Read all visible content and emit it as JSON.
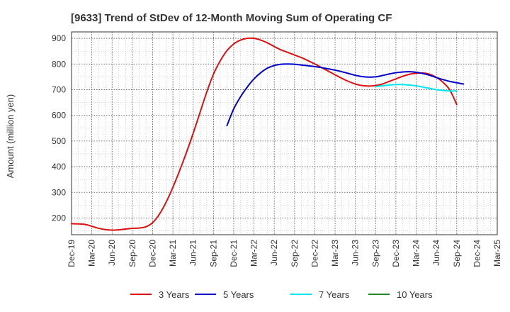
{
  "chart_data": {
    "type": "line",
    "title": "[9633]  Trend of StDev of 12-Month Moving Sum of Operating CF",
    "ylabel": "Amount (million yen)",
    "xlabel": "",
    "ylim": [
      135,
      925
    ],
    "yticks": [
      200,
      300,
      400,
      500,
      600,
      700,
      800,
      900
    ],
    "x_tick_labels": [
      "Dec-19",
      "Mar-20",
      "Jun-20",
      "Sep-20",
      "Dec-20",
      "Mar-21",
      "Jun-21",
      "Sep-21",
      "Dec-21",
      "Mar-22",
      "Jun-22",
      "Sep-22",
      "Dec-22",
      "Mar-23",
      "Jun-23",
      "Sep-23",
      "Dec-23",
      "Mar-24",
      "Jun-24",
      "Sep-24",
      "Dec-24",
      "Mar-25"
    ],
    "grid": true,
    "legend_position": "bottom",
    "series": [
      {
        "name": "3 Years",
        "color": "#dd1111",
        "points": [
          [
            "Dec-19",
            178
          ],
          [
            "Jan-20",
            177
          ],
          [
            "Feb-20",
            175
          ],
          [
            "Mar-20",
            168
          ],
          [
            "Apr-20",
            160
          ],
          [
            "May-20",
            155
          ],
          [
            "Jun-20",
            153
          ],
          [
            "Jul-20",
            154
          ],
          [
            "Aug-20",
            157
          ],
          [
            "Sep-20",
            160
          ],
          [
            "Oct-20",
            161
          ],
          [
            "Nov-20",
            166
          ],
          [
            "Dec-20",
            182
          ],
          [
            "Jan-21",
            215
          ],
          [
            "Feb-21",
            262
          ],
          [
            "Mar-21",
            320
          ],
          [
            "Apr-21",
            385
          ],
          [
            "May-21",
            455
          ],
          [
            "Jun-21",
            530
          ],
          [
            "Jul-21",
            610
          ],
          [
            "Aug-21",
            690
          ],
          [
            "Sep-21",
            760
          ],
          [
            "Oct-21",
            812
          ],
          [
            "Nov-21",
            852
          ],
          [
            "Dec-21",
            878
          ],
          [
            "Jan-22",
            893
          ],
          [
            "Feb-22",
            900
          ],
          [
            "Mar-22",
            900
          ],
          [
            "Apr-22",
            893
          ],
          [
            "May-22",
            882
          ],
          [
            "Jun-22",
            868
          ],
          [
            "Jul-22",
            855
          ],
          [
            "Aug-22",
            845
          ],
          [
            "Sep-22",
            835
          ],
          [
            "Oct-22",
            825
          ],
          [
            "Nov-22",
            813
          ],
          [
            "Dec-22",
            800
          ],
          [
            "Jan-23",
            786
          ],
          [
            "Feb-23",
            772
          ],
          [
            "Mar-23",
            758
          ],
          [
            "Apr-23",
            744
          ],
          [
            "May-23",
            732
          ],
          [
            "Jun-23",
            722
          ],
          [
            "Jul-23",
            716
          ],
          [
            "Aug-23",
            714
          ],
          [
            "Sep-23",
            716
          ],
          [
            "Oct-23",
            722
          ],
          [
            "Nov-23",
            732
          ],
          [
            "Dec-23",
            742
          ],
          [
            "Jan-24",
            752
          ],
          [
            "Feb-24",
            760
          ],
          [
            "Mar-24",
            764
          ],
          [
            "Apr-24",
            765
          ],
          [
            "May-24",
            760
          ],
          [
            "Jun-24",
            748
          ],
          [
            "Jul-24",
            728
          ],
          [
            "Aug-24",
            698
          ],
          [
            "Sep-24",
            642
          ]
        ]
      },
      {
        "name": "5 Years",
        "color": "#0000cc",
        "points": [
          [
            "Nov-21",
            560
          ],
          [
            "Dec-21",
            625
          ],
          [
            "Jan-22",
            672
          ],
          [
            "Feb-22",
            710
          ],
          [
            "Mar-22",
            742
          ],
          [
            "Apr-22",
            766
          ],
          [
            "May-22",
            784
          ],
          [
            "Jun-22",
            794
          ],
          [
            "Jul-22",
            799
          ],
          [
            "Aug-22",
            800
          ],
          [
            "Sep-22",
            799
          ],
          [
            "Oct-22",
            796
          ],
          [
            "Nov-22",
            793
          ],
          [
            "Dec-22",
            790
          ],
          [
            "Jan-23",
            786
          ],
          [
            "Feb-23",
            781
          ],
          [
            "Mar-23",
            776
          ],
          [
            "Apr-23",
            770
          ],
          [
            "May-23",
            763
          ],
          [
            "Jun-23",
            756
          ],
          [
            "Jul-23",
            751
          ],
          [
            "Aug-23",
            749
          ],
          [
            "Sep-23",
            750
          ],
          [
            "Oct-23",
            755
          ],
          [
            "Nov-23",
            761
          ],
          [
            "Dec-23",
            766
          ],
          [
            "Jan-24",
            769
          ],
          [
            "Feb-24",
            770
          ],
          [
            "Mar-24",
            768
          ],
          [
            "Apr-24",
            763
          ],
          [
            "May-24",
            756
          ],
          [
            "Jun-24",
            747
          ],
          [
            "Jul-24",
            739
          ],
          [
            "Aug-24",
            732
          ],
          [
            "Sep-24",
            727
          ],
          [
            "Oct-24",
            722
          ]
        ]
      },
      {
        "name": "7 Years",
        "color": "#00e5ee",
        "points": [
          [
            "Sep-23",
            712
          ],
          [
            "Oct-23",
            715
          ],
          [
            "Nov-23",
            718
          ],
          [
            "Dec-23",
            720
          ],
          [
            "Jan-24",
            720
          ],
          [
            "Feb-24",
            718
          ],
          [
            "Mar-24",
            715
          ],
          [
            "Apr-24",
            710
          ],
          [
            "May-24",
            705
          ],
          [
            "Jun-24",
            700
          ],
          [
            "Jul-24",
            697
          ],
          [
            "Aug-24",
            695
          ],
          [
            "Sep-24",
            695
          ]
        ]
      },
      {
        "name": "10 Years",
        "color": "#228822",
        "points": []
      }
    ]
  }
}
